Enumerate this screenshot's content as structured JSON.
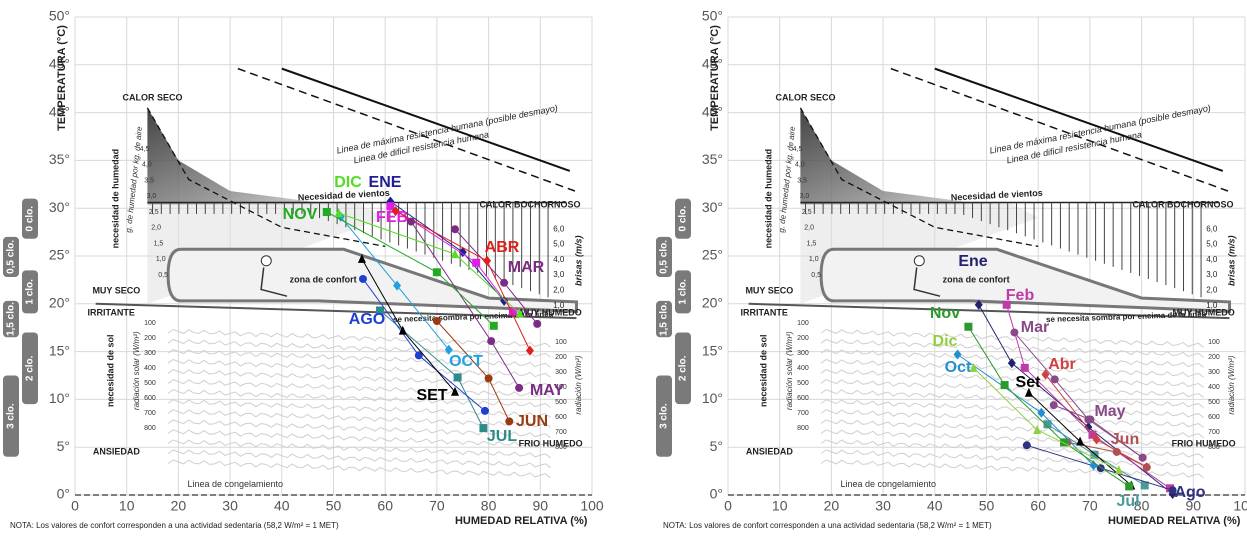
{
  "chart_data": [
    {
      "type": "line",
      "ylabel": "TEMPERATURA (°C)",
      "xlabel": "HUMEDAD RELATIVA (%)",
      "note": "NOTA: Los valores de confort corresponden a una actividad sedentaria (58,2 W/m² = 1 MET)",
      "xlim": [
        0,
        100
      ],
      "ylim": [
        0,
        50
      ],
      "xticks": [
        0,
        10,
        20,
        30,
        40,
        50,
        60,
        70,
        80,
        90,
        100
      ],
      "yticks": [
        {
          "value": 0,
          "label": "0°"
        },
        {
          "value": 5,
          "label": "5°"
        },
        {
          "value": 10,
          "label": "10°"
        },
        {
          "value": 15,
          "label": "15°"
        },
        {
          "value": 20,
          "label": "20°"
        },
        {
          "value": 25,
          "label": "25°"
        },
        {
          "value": 30,
          "label": "30°"
        },
        {
          "value": 35,
          "label": "35°"
        },
        {
          "value": 40,
          "label": "40°"
        },
        {
          "value": 45,
          "label": "45°"
        },
        {
          "value": 50,
          "label": "50°"
        }
      ],
      "grid": true,
      "annotations": [
        "CALOR SECO",
        "CALOR BOCHORNOSO",
        "MUY SECO",
        "MUY HUMEDO",
        "IRRITANTE",
        "ANSIEDAD",
        "FRIO HUMEDO",
        "zona de confort",
        "Necesidad de vientos",
        "se necesita sombra por encima de la linea",
        "Linea de máxima resistencia humana (posible desmayo)",
        "Linea de dificil resistencia humana",
        "Linea de congelamiento",
        "necesidad de humedad",
        "g. de humedad por kg. de aire",
        "necesidad de sol",
        "radiación solar (W/m²)",
        "brisas (m/s)",
        "radiación (W/m²)"
      ],
      "humidity_scale": [
        "4,5",
        "4,0",
        "3,5",
        "3,0",
        "2,5",
        "2,0",
        "1,5",
        "1,0",
        "0,5"
      ],
      "wind_scale": [
        "6,0",
        "5,0",
        "4,0",
        "3,0",
        "2,0",
        "1,0"
      ],
      "solar_scale": [
        "100",
        "200",
        "300",
        "400",
        "500",
        "600",
        "700",
        "800"
      ],
      "radiation_scale": [
        "100",
        "200",
        "300",
        "400",
        "500",
        "600",
        "700",
        "800"
      ],
      "clothing": [
        "0 clo.",
        "0,5 clo.",
        "1 clo.",
        "1,5 clo.",
        "2 clo.",
        "3 clo."
      ],
      "series": [
        {
          "name": "ENE",
          "color": "#1f1f8f",
          "marker": "diamond",
          "x": [
            61,
            75,
            83
          ],
          "values": [
            30.7,
            25.4,
            20.3
          ]
        },
        {
          "name": "FEB",
          "color": "#e020e0",
          "marker": "square",
          "x": [
            61,
            77.6,
            84.7
          ],
          "values": [
            30.2,
            24.3,
            19.2
          ]
        },
        {
          "name": "MAR",
          "color": "#7b2c83",
          "marker": "circle",
          "x": [
            73.5,
            83,
            89.4
          ],
          "values": [
            27.8,
            22.2,
            17.9
          ]
        },
        {
          "name": "ABR",
          "color": "#e0201a",
          "marker": "diamond",
          "x": [
            62,
            79.7,
            88
          ],
          "values": [
            29.7,
            24.5,
            15.1
          ]
        },
        {
          "name": "MAY",
          "color": "#7b2c83",
          "marker": "circle",
          "x": [
            65,
            80.5,
            85.9
          ],
          "values": [
            28.6,
            16.1,
            11.2
          ]
        },
        {
          "name": "JUN",
          "color": "#9a3a10",
          "marker": "circle",
          "x": [
            70,
            80,
            84
          ],
          "values": [
            18.2,
            12.2,
            7.7
          ]
        },
        {
          "name": "JUL",
          "color": "#2e8b8b",
          "marker": "square",
          "x": [
            59,
            74,
            79
          ],
          "values": [
            19.3,
            12.3,
            7
          ]
        },
        {
          "name": "AGO",
          "color": "#1f3fd0",
          "marker": "circle",
          "x": [
            55.7,
            66.5,
            79.3
          ],
          "values": [
            22.6,
            14.6,
            8.8
          ]
        },
        {
          "name": "SET",
          "color": "#000000",
          "marker": "triangle",
          "x": [
            55.5,
            63.4,
            73.5
          ],
          "values": [
            24.7,
            17.2,
            10.8
          ]
        },
        {
          "name": "OCT",
          "color": "#1fa0e0",
          "marker": "diamond",
          "x": [
            51.4,
            62.3,
            72.3
          ],
          "values": [
            29.1,
            21.9,
            15.2
          ]
        },
        {
          "name": "NOV",
          "color": "#22aa22",
          "marker": "square",
          "x": [
            48.7,
            70,
            81
          ],
          "values": [
            29.6,
            23.3,
            17.7
          ]
        },
        {
          "name": "DIC",
          "color": "#55dd22",
          "marker": "triangle",
          "x": [
            51,
            73.5,
            86
          ],
          "values": [
            29.5,
            25.2,
            19
          ]
        }
      ]
    },
    {
      "type": "line",
      "ylabel": "TEMPERATURA (°C)",
      "xlabel": "HUMEDAD RELATIVA (%)",
      "note": "NOTA: Los valores de confort corresponden a una actividad sedentaria (58,2 W/m² = 1 MET)",
      "xlim": [
        0,
        100
      ],
      "ylim": [
        0,
        50
      ],
      "xticks": [
        0,
        10,
        20,
        30,
        40,
        50,
        60,
        70,
        80,
        90,
        100
      ],
      "yticks": [
        {
          "value": 0,
          "label": "0°"
        },
        {
          "value": 5,
          "label": "5°"
        },
        {
          "value": 10,
          "label": "10°"
        },
        {
          "value": 15,
          "label": "15°"
        },
        {
          "value": 20,
          "label": "20°"
        },
        {
          "value": 25,
          "label": "25°"
        },
        {
          "value": 30,
          "label": "30°"
        },
        {
          "value": 35,
          "label": "35°"
        },
        {
          "value": 40,
          "label": "40°"
        },
        {
          "value": 45,
          "label": "45°"
        },
        {
          "value": 50,
          "label": "50°"
        }
      ],
      "grid": true,
      "annotations": [
        "CALOR SECO",
        "CALOR BOCHORNOSO",
        "MUY SECO",
        "MUY HUMEDO",
        "IRRITANTE",
        "ANSIEDAD",
        "FRIO HUMEDO",
        "zona de confort",
        "Necesidad de vientos",
        "se necesita sombra por encima de la linea",
        "Linea de máxima resistencia humana (posible desmayo)",
        "Linea de dificil resistencia humana",
        "Linea de congelamiento",
        "necesidad de humedad",
        "g. de humedad por kg. de aire",
        "necesidad de sol",
        "radiación solar (W/m²)",
        "brisas (m/s)",
        "radiación (W/m²)"
      ],
      "humidity_scale": [
        "4,5",
        "4,0",
        "3,5",
        "3,0",
        "2,5",
        "2,0",
        "1,5",
        "1,0",
        "0,5"
      ],
      "wind_scale": [
        "6,0",
        "5,0",
        "4,0",
        "3,0",
        "2,0",
        "1,0"
      ],
      "solar_scale": [
        "100",
        "200",
        "300",
        "400",
        "500",
        "600",
        "700",
        "800"
      ],
      "radiation_scale": [
        "100",
        "200",
        "300",
        "400",
        "500",
        "600",
        "700",
        "800"
      ],
      "clothing": [
        "0 clo.",
        "0,5 clo.",
        "1 clo.",
        "1,5 clo.",
        "2 clo.",
        "3 clo."
      ],
      "series": [
        {
          "name": "Ene",
          "color": "#22226f",
          "marker": "diamond",
          "x": [
            48.5,
            54.9,
            69.7,
            86
          ],
          "values": [
            19.9,
            13.8,
            7.1,
            0.1
          ]
        },
        {
          "name": "Feb",
          "color": "#c03aa8",
          "marker": "square",
          "x": [
            53.9,
            57.4,
            70.5,
            85.5
          ],
          "values": [
            19.9,
            13.3,
            6.3,
            0.7
          ]
        },
        {
          "name": "Mar",
          "color": "#8a4a8a",
          "marker": "circle",
          "x": [
            55.4,
            63.2,
            69.7,
            80.2
          ],
          "values": [
            17,
            12.1,
            7.9,
            3.9
          ]
        },
        {
          "name": "Abr",
          "color": "#d04040",
          "marker": "diamond",
          "x": [
            61.4,
            71.3,
            81
          ],
          "values": [
            12.6,
            5.8,
            2.9
          ]
        },
        {
          "name": "May",
          "color": "#8a4a8a",
          "marker": "circle",
          "x": [
            63,
            70.1,
            80.2
          ],
          "values": [
            9.4,
            7.9,
            3.9
          ]
        },
        {
          "name": "Jun",
          "color": "#b05050",
          "marker": "circle",
          "x": [
            65.7,
            75.2,
            81
          ],
          "values": [
            5.5,
            4.5,
            2.9
          ]
        },
        {
          "name": "Jul",
          "color": "#4a9a9a",
          "marker": "square",
          "x": [
            61.8,
            70.9,
            80.6
          ],
          "values": [
            7.4,
            4.2,
            1
          ]
        },
        {
          "name": "Ago",
          "color": "#303080",
          "marker": "circle",
          "x": [
            57.8,
            72.1,
            86
          ],
          "values": [
            5.2,
            2.8,
            0.5
          ]
        },
        {
          "name": "Set",
          "color": "#000000",
          "marker": "triangle",
          "x": [
            58.2,
            68.1,
            78
          ],
          "values": [
            10.7,
            5.6,
            1
          ]
        },
        {
          "name": "Oct",
          "color": "#2090d0",
          "marker": "diamond",
          "x": [
            44.4,
            60.6,
            70.7
          ],
          "values": [
            14.7,
            8.6,
            3.1
          ]
        },
        {
          "name": "Nov",
          "color": "#2a9a2a",
          "marker": "square",
          "x": [
            46.5,
            53.5,
            65,
            77.6
          ],
          "values": [
            17.6,
            11.5,
            5.5,
            0.9
          ]
        },
        {
          "name": "Dic",
          "color": "#90d040",
          "marker": "triangle",
          "x": [
            47.5,
            59.8,
            75.6
          ],
          "values": [
            13.3,
            6.8,
            2.6
          ]
        }
      ]
    }
  ]
}
